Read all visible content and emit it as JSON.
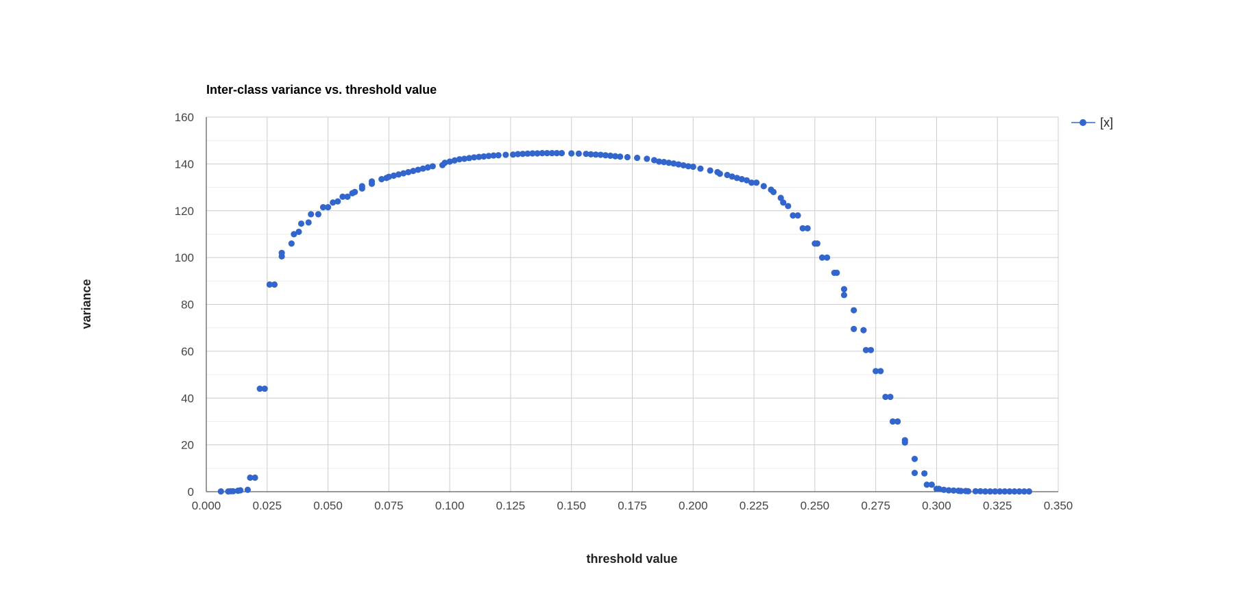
{
  "chart_data": {
    "type": "scatter",
    "title": "Inter-class variance vs. threshold value",
    "xlabel": "threshold value",
    "ylabel": "variance",
    "xlim": [
      0.0,
      0.35
    ],
    "ylim": [
      0,
      160
    ],
    "xticks": [
      "0.000",
      "0.025",
      "0.050",
      "0.075",
      "0.100",
      "0.125",
      "0.150",
      "0.175",
      "0.200",
      "0.225",
      "0.250",
      "0.275",
      "0.300",
      "0.325",
      "0.350"
    ],
    "yticks": [
      "0",
      "20",
      "40",
      "60",
      "80",
      "100",
      "120",
      "140",
      "160"
    ],
    "grid": true,
    "legend_position": "right",
    "colors": {
      "series": "#3366cc",
      "major_grid": "#cccccc",
      "minor_grid": "#eeeeee",
      "axis": "#333333"
    },
    "series": [
      {
        "name": "[x]",
        "points": [
          [
            0.006,
            0.1
          ],
          [
            0.009,
            0.1
          ],
          [
            0.01,
            0.2
          ],
          [
            0.011,
            0.2
          ],
          [
            0.013,
            0.4
          ],
          [
            0.014,
            0.6
          ],
          [
            0.017,
            0.8
          ],
          [
            0.018,
            6.0
          ],
          [
            0.02,
            6.0
          ],
          [
            0.022,
            44
          ],
          [
            0.024,
            44
          ],
          [
            0.026,
            88.5
          ],
          [
            0.028,
            88.5
          ],
          [
            0.031,
            100.5
          ],
          [
            0.031,
            102
          ],
          [
            0.035,
            106
          ],
          [
            0.036,
            110
          ],
          [
            0.038,
            111
          ],
          [
            0.039,
            114.5
          ],
          [
            0.042,
            115
          ],
          [
            0.043,
            118.5
          ],
          [
            0.046,
            118.5
          ],
          [
            0.048,
            121.5
          ],
          [
            0.05,
            121.5
          ],
          [
            0.052,
            123.5
          ],
          [
            0.054,
            124
          ],
          [
            0.056,
            126
          ],
          [
            0.058,
            126
          ],
          [
            0.06,
            127.5
          ],
          [
            0.061,
            128
          ],
          [
            0.064,
            129.5
          ],
          [
            0.064,
            130.5
          ],
          [
            0.068,
            131.5
          ],
          [
            0.068,
            132.5
          ],
          [
            0.072,
            133.5
          ],
          [
            0.074,
            134
          ],
          [
            0.075,
            134.5
          ],
          [
            0.077,
            135
          ],
          [
            0.079,
            135.5
          ],
          [
            0.081,
            136
          ],
          [
            0.083,
            136.5
          ],
          [
            0.085,
            137
          ],
          [
            0.087,
            137.5
          ],
          [
            0.089,
            138
          ],
          [
            0.091,
            138.5
          ],
          [
            0.093,
            139
          ],
          [
            0.097,
            139.5
          ],
          [
            0.098,
            140.5
          ],
          [
            0.1,
            141
          ],
          [
            0.102,
            141.5
          ],
          [
            0.104,
            142
          ],
          [
            0.106,
            142.2
          ],
          [
            0.108,
            142.5
          ],
          [
            0.11,
            142.8
          ],
          [
            0.112,
            143
          ],
          [
            0.114,
            143.2
          ],
          [
            0.116,
            143.4
          ],
          [
            0.118,
            143.6
          ],
          [
            0.12,
            143.7
          ],
          [
            0.123,
            143.9
          ],
          [
            0.126,
            144
          ],
          [
            0.128,
            144.2
          ],
          [
            0.13,
            144.3
          ],
          [
            0.132,
            144.4
          ],
          [
            0.134,
            144.5
          ],
          [
            0.136,
            144.5
          ],
          [
            0.138,
            144.6
          ],
          [
            0.14,
            144.6
          ],
          [
            0.142,
            144.6
          ],
          [
            0.144,
            144.6
          ],
          [
            0.146,
            144.6
          ],
          [
            0.15,
            144.5
          ],
          [
            0.153,
            144.4
          ],
          [
            0.156,
            144.3
          ],
          [
            0.158,
            144.1
          ],
          [
            0.16,
            144
          ],
          [
            0.162,
            143.9
          ],
          [
            0.164,
            143.7
          ],
          [
            0.166,
            143.5
          ],
          [
            0.168,
            143.3
          ],
          [
            0.17,
            143.1
          ],
          [
            0.173,
            142.9
          ],
          [
            0.177,
            142.6
          ],
          [
            0.181,
            142.2
          ],
          [
            0.184,
            141.6
          ],
          [
            0.186,
            141
          ],
          [
            0.188,
            140.8
          ],
          [
            0.19,
            140.5
          ],
          [
            0.192,
            140.2
          ],
          [
            0.194,
            139.8
          ],
          [
            0.196,
            139.4
          ],
          [
            0.198,
            139
          ],
          [
            0.2,
            138.8
          ],
          [
            0.203,
            138
          ],
          [
            0.207,
            137.2
          ],
          [
            0.21,
            136.5
          ],
          [
            0.211,
            135.8
          ],
          [
            0.214,
            135.3
          ],
          [
            0.216,
            134.6
          ],
          [
            0.218,
            134
          ],
          [
            0.22,
            133.5
          ],
          [
            0.222,
            133
          ],
          [
            0.224,
            132
          ],
          [
            0.226,
            132
          ],
          [
            0.229,
            130.5
          ],
          [
            0.232,
            129
          ],
          [
            0.233,
            128
          ],
          [
            0.236,
            125.5
          ],
          [
            0.237,
            123.5
          ],
          [
            0.239,
            122
          ],
          [
            0.241,
            118
          ],
          [
            0.243,
            118
          ],
          [
            0.245,
            112.5
          ],
          [
            0.247,
            112.5
          ],
          [
            0.25,
            106
          ],
          [
            0.251,
            106
          ],
          [
            0.253,
            100
          ],
          [
            0.255,
            100
          ],
          [
            0.258,
            93.5
          ],
          [
            0.259,
            93.5
          ],
          [
            0.262,
            86.5
          ],
          [
            0.262,
            84
          ],
          [
            0.266,
            77.5
          ],
          [
            0.266,
            69.5
          ],
          [
            0.27,
            69
          ],
          [
            0.271,
            60.5
          ],
          [
            0.273,
            60.5
          ],
          [
            0.275,
            51.5
          ],
          [
            0.277,
            51.5
          ],
          [
            0.279,
            40.5
          ],
          [
            0.281,
            40.5
          ],
          [
            0.282,
            30
          ],
          [
            0.284,
            30
          ],
          [
            0.287,
            22
          ],
          [
            0.287,
            21
          ],
          [
            0.291,
            14
          ],
          [
            0.291,
            8
          ],
          [
            0.295,
            7.8
          ],
          [
            0.296,
            3
          ],
          [
            0.298,
            3
          ],
          [
            0.3,
            1.2
          ],
          [
            0.301,
            1.2
          ],
          [
            0.303,
            0.8
          ],
          [
            0.305,
            0.6
          ],
          [
            0.307,
            0.5
          ],
          [
            0.309,
            0.4
          ],
          [
            0.31,
            0.3
          ],
          [
            0.312,
            0.3
          ],
          [
            0.313,
            0.2
          ],
          [
            0.316,
            0.2
          ],
          [
            0.318,
            0.2
          ],
          [
            0.32,
            0.1
          ],
          [
            0.322,
            0.1
          ],
          [
            0.324,
            0.1
          ],
          [
            0.326,
            0.1
          ],
          [
            0.328,
            0.1
          ],
          [
            0.33,
            0.1
          ],
          [
            0.332,
            0.1
          ],
          [
            0.334,
            0.1
          ],
          [
            0.336,
            0.1
          ],
          [
            0.338,
            0.1
          ]
        ]
      }
    ]
  }
}
